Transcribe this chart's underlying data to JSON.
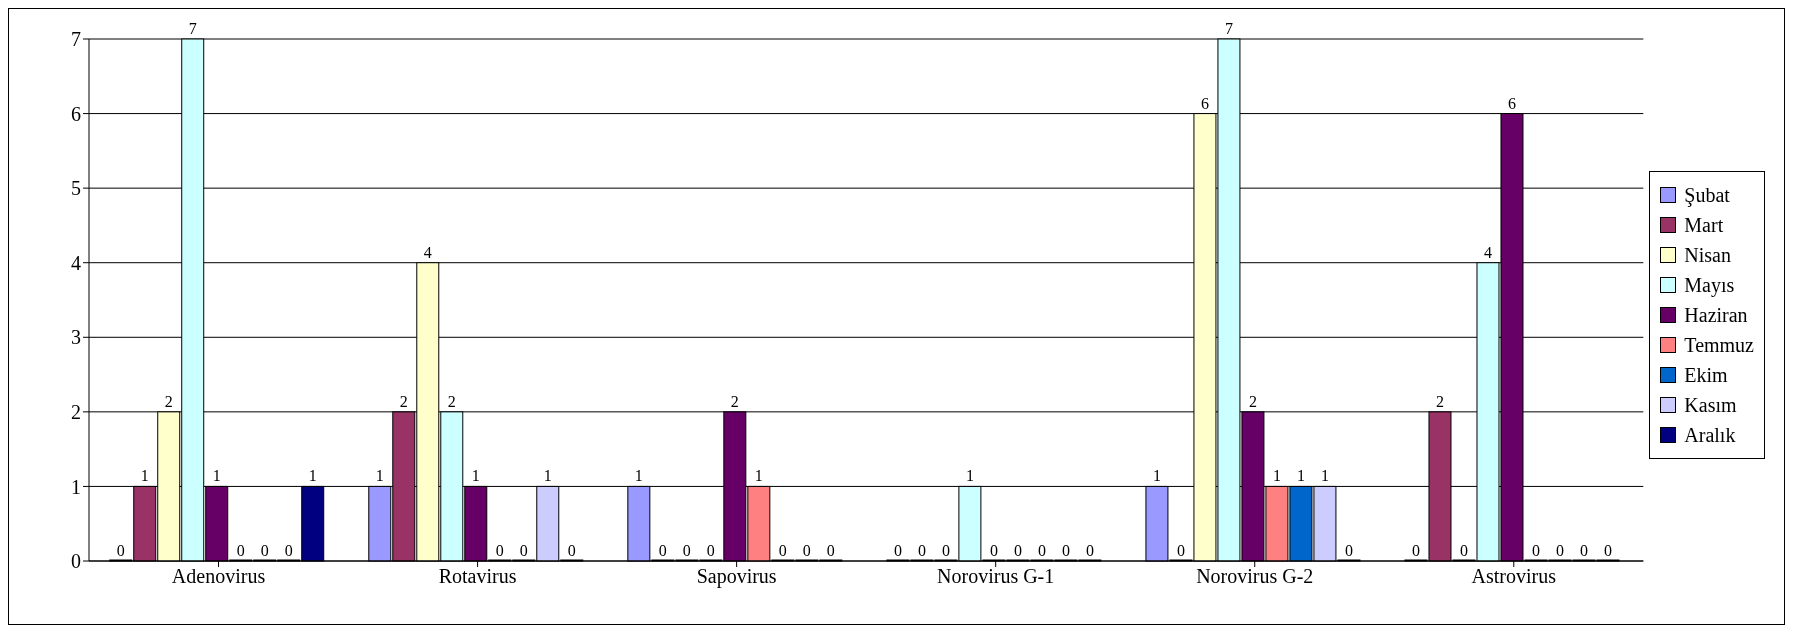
{
  "chart_data": {
    "type": "bar",
    "categories": [
      "Adenovirus",
      "Rotavirus",
      "Sapovirus",
      "Norovirus G-1",
      "Norovirus G-2",
      "Astrovirus"
    ],
    "series": [
      {
        "name": "Şubat",
        "color": "#9999ff",
        "values": [
          0,
          1,
          1,
          0,
          1,
          0
        ]
      },
      {
        "name": "Mart",
        "color": "#993366",
        "values": [
          1,
          2,
          0,
          0,
          0,
          2
        ]
      },
      {
        "name": "Nisan",
        "color": "#ffffcc",
        "values": [
          2,
          4,
          0,
          0,
          6,
          0
        ]
      },
      {
        "name": "Mayıs",
        "color": "#ccffff",
        "values": [
          7,
          2,
          0,
          1,
          7,
          4
        ]
      },
      {
        "name": "Haziran",
        "color": "#660066",
        "values": [
          1,
          1,
          2,
          0,
          2,
          6
        ]
      },
      {
        "name": "Temmuz",
        "color": "#ff8080",
        "values": [
          0,
          0,
          1,
          0,
          1,
          0
        ]
      },
      {
        "name": "Ekim",
        "color": "#0066cc",
        "values": [
          0,
          0,
          0,
          0,
          1,
          0
        ]
      },
      {
        "name": "Kasım",
        "color": "#ccccff",
        "values": [
          0,
          1,
          0,
          0,
          1,
          0
        ]
      },
      {
        "name": "Aralık",
        "color": "#000080",
        "values": [
          1,
          0,
          0,
          0,
          0,
          0
        ]
      }
    ],
    "ylim": [
      0,
      7
    ],
    "yticks": [
      0,
      1,
      2,
      3,
      4,
      5,
      6,
      7
    ],
    "grid": "y",
    "legend": "right",
    "data_labels": true
  }
}
